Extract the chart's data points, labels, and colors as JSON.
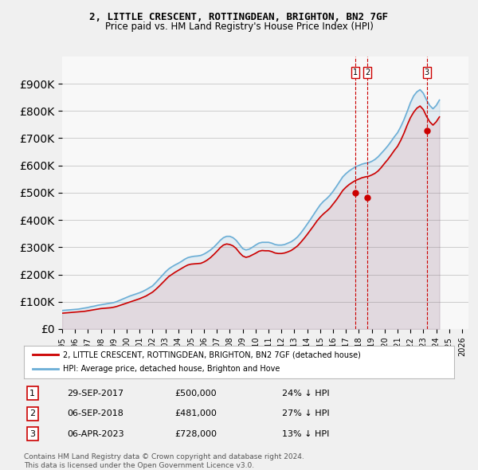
{
  "title": "2, LITTLE CRESCENT, ROTTINGDEAN, BRIGHTON, BN2 7GF",
  "subtitle": "Price paid vs. HM Land Registry's House Price Index (HPI)",
  "hpi_color": "#6baed6",
  "price_color": "#cc0000",
  "vline_color": "#cc0000",
  "background_color": "#f0f0f0",
  "plot_bg_color": "#f8f8f8",
  "ylim": [
    0,
    1000000
  ],
  "yticks": [
    0,
    100000,
    200000,
    300000,
    400000,
    500000,
    600000,
    700000,
    800000,
    900000
  ],
  "ylabel_format": "£{0}K",
  "transactions": [
    {
      "label": "1",
      "date": "29-SEP-2017",
      "price": 500000,
      "hpi_diff": "24% ↓ HPI",
      "x": 2017.75
    },
    {
      "label": "2",
      "date": "06-SEP-2018",
      "price": 481000,
      "hpi_diff": "27% ↓ HPI",
      "x": 2018.68
    },
    {
      "label": "3",
      "date": "06-APR-2023",
      "price": 728000,
      "hpi_diff": "13% ↓ HPI",
      "x": 2023.26
    }
  ],
  "legend_entries": [
    "2, LITTLE CRESCENT, ROTTINGDEAN, BRIGHTON, BN2 7GF (detached house)",
    "HPI: Average price, detached house, Brighton and Hove"
  ],
  "footer": "Contains HM Land Registry data © Crown copyright and database right 2024.\nThis data is licensed under the Open Government Licence v3.0.",
  "hpi_data_x": [
    1995,
    1995.25,
    1995.5,
    1995.75,
    1996,
    1996.25,
    1996.5,
    1996.75,
    1997,
    1997.25,
    1997.5,
    1997.75,
    1998,
    1998.25,
    1998.5,
    1998.75,
    1999,
    1999.25,
    1999.5,
    1999.75,
    2000,
    2000.25,
    2000.5,
    2000.75,
    2001,
    2001.25,
    2001.5,
    2001.75,
    2002,
    2002.25,
    2002.5,
    2002.75,
    2003,
    2003.25,
    2003.5,
    2003.75,
    2004,
    2004.25,
    2004.5,
    2004.75,
    2005,
    2005.25,
    2005.5,
    2005.75,
    2006,
    2006.25,
    2006.5,
    2006.75,
    2007,
    2007.25,
    2007.5,
    2007.75,
    2008,
    2008.25,
    2008.5,
    2008.75,
    2009,
    2009.25,
    2009.5,
    2009.75,
    2010,
    2010.25,
    2010.5,
    2010.75,
    2011,
    2011.25,
    2011.5,
    2011.75,
    2012,
    2012.25,
    2012.5,
    2012.75,
    2013,
    2013.25,
    2013.5,
    2013.75,
    2014,
    2014.25,
    2014.5,
    2014.75,
    2015,
    2015.25,
    2015.5,
    2015.75,
    2016,
    2016.25,
    2016.5,
    2016.75,
    2017,
    2017.25,
    2017.5,
    2017.75,
    2018,
    2018.25,
    2018.5,
    2018.75,
    2019,
    2019.25,
    2019.5,
    2019.75,
    2020,
    2020.25,
    2020.5,
    2020.75,
    2021,
    2021.25,
    2021.5,
    2021.75,
    2022,
    2022.25,
    2022.5,
    2022.75,
    2023,
    2023.25,
    2023.5,
    2023.75,
    2024,
    2024.25
  ],
  "hpi_data_y": [
    68000,
    69000,
    70000,
    71000,
    72000,
    73000,
    75000,
    77000,
    79000,
    82000,
    84000,
    87000,
    89000,
    91000,
    93000,
    95000,
    97000,
    101000,
    106000,
    111000,
    116000,
    121000,
    125000,
    129000,
    133000,
    138000,
    144000,
    151000,
    158000,
    170000,
    183000,
    196000,
    209000,
    220000,
    228000,
    235000,
    241000,
    248000,
    256000,
    262000,
    265000,
    267000,
    268000,
    270000,
    275000,
    282000,
    290000,
    300000,
    312000,
    325000,
    335000,
    340000,
    340000,
    335000,
    325000,
    310000,
    295000,
    290000,
    293000,
    300000,
    308000,
    315000,
    318000,
    318000,
    318000,
    315000,
    310000,
    308000,
    308000,
    310000,
    315000,
    320000,
    328000,
    338000,
    352000,
    368000,
    385000,
    402000,
    420000,
    438000,
    455000,
    468000,
    478000,
    490000,
    505000,
    522000,
    540000,
    558000,
    570000,
    580000,
    588000,
    595000,
    600000,
    605000,
    608000,
    610000,
    615000,
    622000,
    632000,
    645000,
    658000,
    672000,
    688000,
    705000,
    720000,
    742000,
    768000,
    798000,
    830000,
    855000,
    870000,
    878000,
    865000,
    840000,
    820000,
    808000,
    820000,
    840000
  ],
  "price_data_x": [
    1995,
    1995.25,
    1995.5,
    1995.75,
    1996,
    1996.25,
    1996.5,
    1996.75,
    1997,
    1997.25,
    1997.5,
    1997.75,
    1998,
    1998.25,
    1998.5,
    1998.75,
    1999,
    1999.25,
    1999.5,
    1999.75,
    2000,
    2000.25,
    2000.5,
    2000.75,
    2001,
    2001.25,
    2001.5,
    2001.75,
    2002,
    2002.25,
    2002.5,
    2002.75,
    2003,
    2003.25,
    2003.5,
    2003.75,
    2004,
    2004.25,
    2004.5,
    2004.75,
    2005,
    2005.25,
    2005.5,
    2005.75,
    2006,
    2006.25,
    2006.5,
    2006.75,
    2007,
    2007.25,
    2007.5,
    2007.75,
    2008,
    2008.25,
    2008.5,
    2008.75,
    2009,
    2009.25,
    2009.5,
    2009.75,
    2010,
    2010.25,
    2010.5,
    2010.75,
    2011,
    2011.25,
    2011.5,
    2011.75,
    2012,
    2012.25,
    2012.5,
    2012.75,
    2013,
    2013.25,
    2013.5,
    2013.75,
    2014,
    2014.25,
    2014.5,
    2014.75,
    2015,
    2015.25,
    2015.5,
    2015.75,
    2016,
    2016.25,
    2016.5,
    2016.75,
    2017,
    2017.25,
    2017.5,
    2017.75,
    2018,
    2018.25,
    2018.5,
    2018.75,
    2019,
    2019.25,
    2019.5,
    2019.75,
    2020,
    2020.25,
    2020.5,
    2020.75,
    2021,
    2021.25,
    2021.5,
    2021.75,
    2022,
    2022.25,
    2022.5,
    2022.75,
    2023,
    2023.25,
    2023.5,
    2023.75,
    2024,
    2024.25
  ],
  "price_data_y": [
    58000,
    59000,
    60000,
    61000,
    62000,
    63000,
    64000,
    65000,
    67000,
    69000,
    71000,
    73000,
    75000,
    76000,
    77000,
    78000,
    80000,
    83000,
    87000,
    91000,
    95000,
    99000,
    103000,
    107000,
    111000,
    116000,
    121000,
    128000,
    135000,
    145000,
    156000,
    168000,
    180000,
    192000,
    200000,
    208000,
    215000,
    222000,
    229000,
    235000,
    238000,
    239000,
    240000,
    241000,
    246000,
    253000,
    262000,
    273000,
    285000,
    298000,
    308000,
    312000,
    310000,
    305000,
    295000,
    280000,
    268000,
    263000,
    266000,
    272000,
    278000,
    285000,
    288000,
    287000,
    287000,
    284000,
    279000,
    277000,
    277000,
    279000,
    283000,
    288000,
    296000,
    305000,
    318000,
    332000,
    347000,
    363000,
    379000,
    396000,
    410000,
    422000,
    432000,
    443000,
    458000,
    473000,
    490000,
    508000,
    520000,
    530000,
    538000,
    545000,
    550000,
    555000,
    558000,
    560000,
    565000,
    571000,
    580000,
    593000,
    608000,
    622000,
    638000,
    655000,
    670000,
    692000,
    718000,
    748000,
    775000,
    795000,
    810000,
    818000,
    805000,
    780000,
    760000,
    748000,
    760000,
    778000
  ]
}
